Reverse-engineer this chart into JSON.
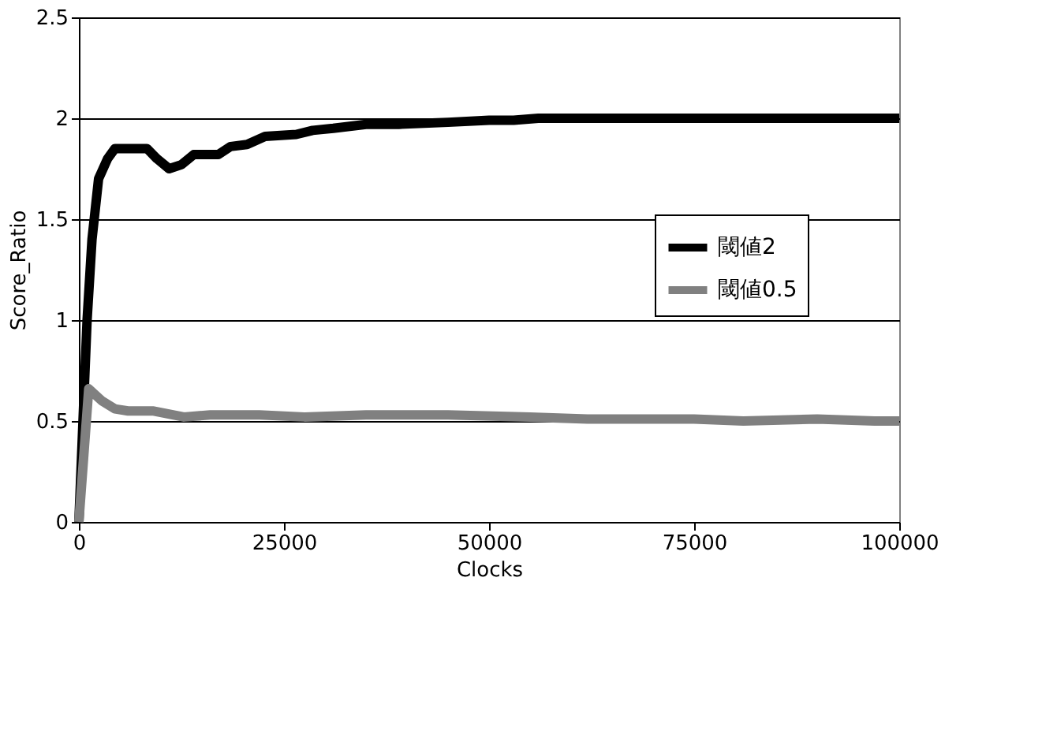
{
  "chart_data": {
    "type": "line",
    "xlabel": "Clocks",
    "ylabel": "Score_Ratio",
    "xlim": [
      0,
      100000
    ],
    "xticks": [
      0,
      25000,
      50000,
      75000,
      100000
    ],
    "ylim": [
      0,
      2.5
    ],
    "yticks": [
      0,
      0.5,
      1,
      1.5,
      2,
      2.5
    ],
    "grid": "y",
    "legend": "right",
    "series": [
      {
        "name": "閾値2",
        "color": "#000000",
        "x": [
          0,
          1000,
          1600,
          2400,
          3500,
          4400,
          6000,
          8300,
          9500,
          11000,
          12500,
          14000,
          17000,
          18500,
          20500,
          22700,
          26500,
          28500,
          31000,
          35000,
          39000,
          45000,
          50000,
          53000,
          56000,
          100000
        ],
        "values": [
          0,
          1.0,
          1.4,
          1.7,
          1.8,
          1.85,
          1.85,
          1.85,
          1.8,
          1.75,
          1.77,
          1.82,
          1.82,
          1.86,
          1.87,
          1.91,
          1.92,
          1.94,
          1.95,
          1.97,
          1.97,
          1.98,
          1.99,
          1.99,
          2.0,
          2.0
        ]
      },
      {
        "name": "閾値0.5",
        "color": "#808080",
        "x": [
          0,
          1200,
          2800,
          4400,
          6000,
          9000,
          12800,
          16000,
          22000,
          27500,
          35000,
          45000,
          55000,
          62000,
          68000,
          75000,
          81000,
          90000,
          97000,
          100000
        ],
        "values": [
          0,
          0.66,
          0.6,
          0.56,
          0.55,
          0.55,
          0.52,
          0.53,
          0.53,
          0.52,
          0.53,
          0.53,
          0.52,
          0.51,
          0.51,
          0.51,
          0.5,
          0.51,
          0.5,
          0.5
        ]
      }
    ]
  }
}
